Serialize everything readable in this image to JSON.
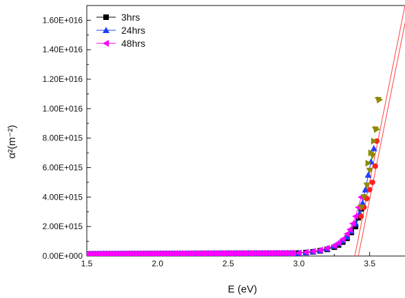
{
  "chart_data": {
    "type": "scatter",
    "xlabel": "E (eV)",
    "ylabel": "α²(m⁻²)",
    "xlim": [
      1.5,
      3.75
    ],
    "ylim": [
      0,
      1.7e+16
    ],
    "xticks": [
      1.5,
      2.0,
      2.5,
      3.0,
      3.5
    ],
    "xtick_labels": [
      "1.5",
      "2.0",
      "2.5",
      "3.0",
      "3.5"
    ],
    "yticks": [
      0,
      2000000000000000.0,
      4000000000000000.0,
      6000000000000000.0,
      8000000000000000.0,
      1e+16,
      1.2e+16,
      1.4e+16,
      1.6e+16
    ],
    "ytick_labels": [
      "0.00E+000",
      "2.00E+015",
      "4.00E+015",
      "6.00E+015",
      "8.00E+015",
      "1.00E+016",
      "1.20E+016",
      "1.40E+016",
      "1.60E+016"
    ],
    "legend_position": "top-left",
    "series": [
      {
        "name": "3hrs",
        "marker": "square",
        "color": "#000000",
        "x": [
          3.0,
          3.05,
          3.1,
          3.15,
          3.2,
          3.25,
          3.28,
          3.31,
          3.34,
          3.37,
          3.4,
          3.42,
          3.44
        ],
        "y": [
          190000000000000.0,
          230000000000000.0,
          280000000000000.0,
          350000000000000.0,
          450000000000000.0,
          600000000000000.0,
          750000000000000.0,
          950000000000000.0,
          1200000000000000.0,
          1600000000000000.0,
          2000000000000000.0,
          2600000000000000.0,
          3200000000000000.0
        ]
      },
      {
        "name": "24hrs",
        "marker": "triangle-up",
        "color": "#1f3fff",
        "x": [
          3.0,
          3.05,
          3.1,
          3.15,
          3.2,
          3.25,
          3.28,
          3.31,
          3.34,
          3.37,
          3.4,
          3.43,
          3.45,
          3.47,
          3.49,
          3.51,
          3.53
        ],
        "y": [
          200000000000000.0,
          240000000000000.0,
          300000000000000.0,
          380000000000000.0,
          500000000000000.0,
          680000000000000.0,
          850000000000000.0,
          1050000000000000.0,
          1300000000000000.0,
          1700000000000000.0,
          2200000000000000.0,
          2900000000000000.0,
          3600000000000000.0,
          4500000000000000.0,
          5500000000000000.0,
          6400000000000000.0,
          7300000000000000.0
        ]
      },
      {
        "name": "48hrs",
        "marker": "triangle-left",
        "color": "#ff00ff",
        "x": [
          3.0,
          3.05,
          3.1,
          3.15,
          3.2,
          3.25,
          3.28,
          3.31,
          3.34,
          3.36,
          3.38,
          3.4,
          3.42,
          3.44
        ],
        "y": [
          210000000000000.0,
          260000000000000.0,
          320000000000000.0,
          400000000000000.0,
          530000000000000.0,
          700000000000000.0,
          900000000000000.0,
          1150000000000000.0,
          1500000000000000.0,
          1800000000000000.0,
          2200000000000000.0,
          2700000000000000.0,
          3300000000000000.0,
          4000000000000000.0
        ]
      },
      {
        "marker": "circle",
        "color": "#ff2020",
        "x": [
          3.44,
          3.46,
          3.48,
          3.5,
          3.52,
          3.54,
          3.55
        ],
        "y": [
          2700000000000000.0,
          3300000000000000.0,
          3900000000000000.0,
          4500000000000000.0,
          5000000000000000.0,
          6100000000000000.0,
          7800000000000000.0
        ]
      },
      {
        "marker": "triangle-down",
        "color": "#8b8b00",
        "x": [
          3.44,
          3.46,
          3.48,
          3.5,
          3.52,
          3.54,
          3.56
        ],
        "y": [
          3300000000000000.0,
          4000000000000000.0,
          4800000000000000.0,
          5800000000000000.0,
          6800000000000000.0,
          8600000000000000.0,
          1.06e+16
        ]
      },
      {
        "marker": "triangle-right",
        "color": "#8b8b00",
        "x": [
          3.49,
          3.51,
          3.53,
          3.55,
          3.57
        ],
        "y": [
          6300000000000000.0,
          7000000000000000.0,
          7800000000000000.0,
          8600000000000000.0,
          1.06e+16
        ]
      }
    ],
    "baseline": {
      "description_free": true,
      "x_start": 1.5,
      "x_end": 3.0,
      "y_start": 140000000000000.0,
      "y_end": 190000000000000.0,
      "step": 0.02
    },
    "fit_lines": [
      {
        "color": "#ff4040",
        "x": [
          3.395,
          3.8
        ],
        "y": [
          0,
          1.94e+16
        ]
      },
      {
        "color": "#ff4040",
        "x": [
          3.42,
          3.8
        ],
        "y": [
          0,
          1.82e+16
        ]
      }
    ]
  }
}
